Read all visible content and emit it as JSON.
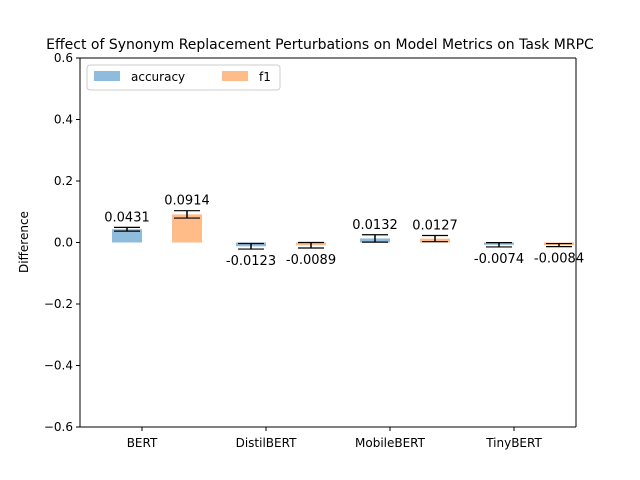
{
  "chart_data": {
    "type": "bar",
    "title": "Effect of Synonym Replacement Perturbations on Model Metrics on Task MRPC",
    "xlabel": "",
    "ylabel": "Difference",
    "ylim": [
      -0.6,
      0.6
    ],
    "yticks": [
      -0.6,
      -0.4,
      -0.2,
      0.0,
      0.2,
      0.4,
      0.6
    ],
    "ytick_labels": [
      "−0.6",
      "−0.4",
      "−0.2",
      "0.0",
      "0.2",
      "0.4",
      "0.6"
    ],
    "categories": [
      "BERT",
      "DistilBERT",
      "MobileBERT",
      "TinyBERT"
    ],
    "series": [
      {
        "name": "accuracy",
        "color": "#8fbcdc",
        "values": [
          0.0431,
          -0.0123,
          0.0132,
          -0.0074
        ],
        "value_labels": [
          "0.0431",
          "-0.0123",
          "0.0132",
          "-0.0074"
        ],
        "error": [
          0.006,
          0.009,
          0.012,
          0.007
        ]
      },
      {
        "name": "f1",
        "color": "#ffbb88",
        "values": [
          0.0914,
          -0.0089,
          0.0127,
          -0.0084
        ],
        "value_labels": [
          "0.0914",
          "-0.0089",
          "0.0127",
          "-0.0084"
        ],
        "error": [
          0.012,
          0.009,
          0.01,
          0.005
        ]
      }
    ],
    "legend": {
      "placement": "top-left",
      "columns": 2
    },
    "grid": false
  }
}
